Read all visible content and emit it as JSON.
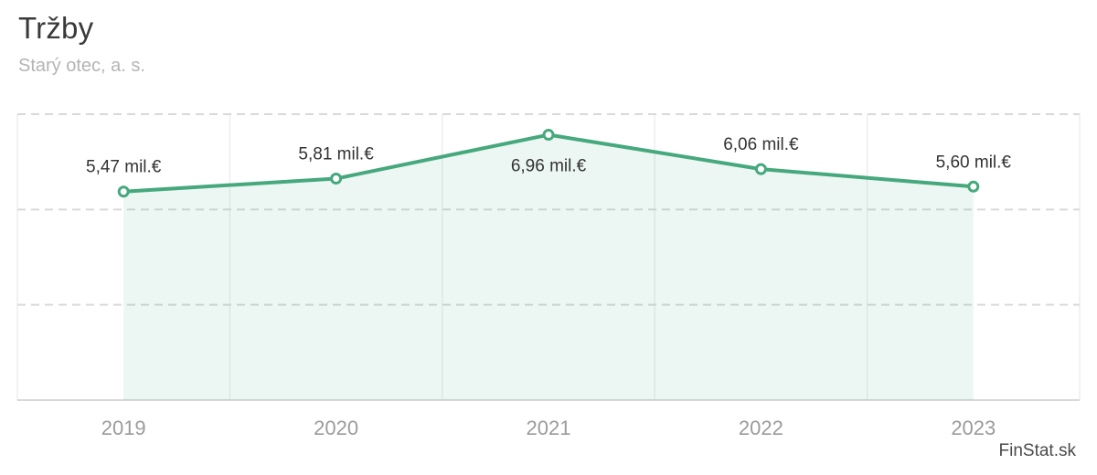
{
  "header": {
    "title": "Tržby",
    "subtitle": "Starý otec, a. s."
  },
  "credit": "FinStat.sk",
  "colors": {
    "line": "#46a87d",
    "area_fill": "rgba(70, 168, 125, 0.10)",
    "marker_fill": "#ffffff",
    "title_text": "#3a3a3a",
    "subtitle_text": "#b4b4b4",
    "data_label_text": "#333333",
    "axis_label_text": "#9b9b9b",
    "grid_dashed": "#d9d9d9",
    "grid_vertical": "#e6e6e6"
  },
  "chart_data": {
    "type": "area",
    "title": "Tržby",
    "subtitle": "Starý otec, a. s.",
    "categories": [
      "2019",
      "2020",
      "2021",
      "2022",
      "2023"
    ],
    "values": [
      5.47,
      5.81,
      6.96,
      6.06,
      5.6
    ],
    "point_labels": [
      "5,47 mil.€",
      "5,81 mil.€",
      "6,96 mil.€",
      "6,06 mil.€",
      "5,60 mil.€"
    ],
    "label_placement": [
      "above",
      "above",
      "below",
      "above",
      "above"
    ],
    "unit": "mil.€",
    "xlabel": "",
    "ylabel": "",
    "ylim": [
      0,
      7.5
    ],
    "ytick_values": [
      2.5,
      5.0,
      7.5
    ],
    "grid": "horizontal dashed gridlines, vertical solid band separators",
    "legend": "none",
    "credit": "FinStat.sk"
  }
}
